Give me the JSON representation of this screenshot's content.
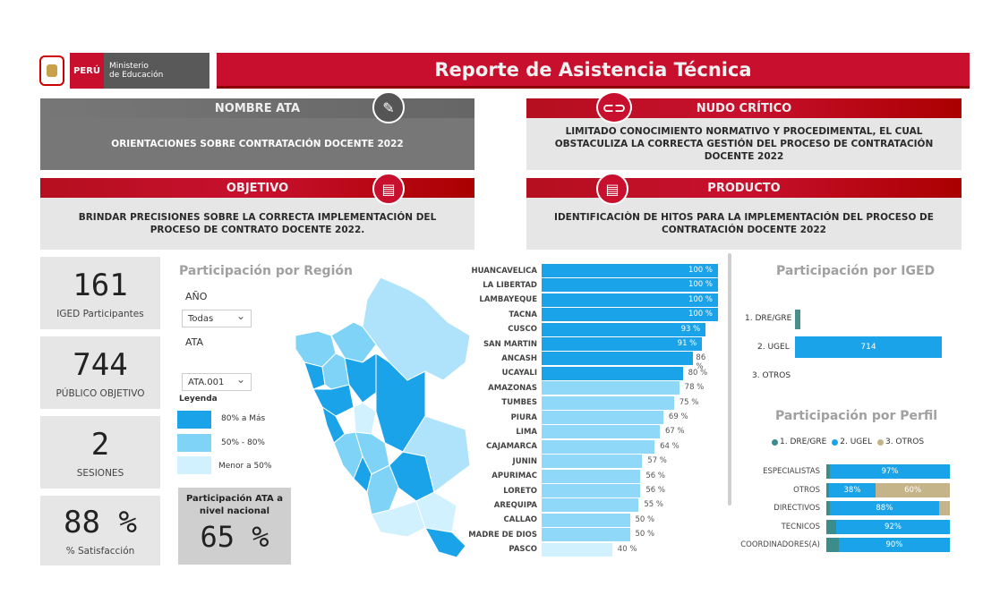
{
  "header": {
    "peru": "PERÚ",
    "ministry_line1": "Ministerio",
    "ministry_line2": "de Educación",
    "title": "Reporte de Asistencia Técnica"
  },
  "cards": {
    "nombre_ata": {
      "title": "NOMBRE ATA",
      "text": "ORIENTACIONES SOBRE CONTRATACIÓN DOCENTE 2022"
    },
    "nudo_critico": {
      "title": "NUDO CRÍTICO",
      "text": "LIMITADO CONOCIMIENTO NORMATIVO Y PROCEDIMENTAL,  EL CUAL OBSTACULIZA LA CORRECTA GESTIÓN DEL PROCESO DE CONTRATACIÓN DOCENTE 2022"
    },
    "objetivo": {
      "title": "OBJETIVO",
      "text": "BRINDAR PRECISIONES SOBRE LA CORRECTA IMPLEMENTACIÓN DEL PROCESO DE CONTRATO DOCENTE 2022."
    },
    "producto": {
      "title": "PRODUCTO",
      "text": "IDENTIFICACIÒN DE HITOS PARA LA IMPLEMENTACIÓN DEL PROCESO DE CONTRATACIÓN DOCENTE 2022"
    }
  },
  "kpis": [
    {
      "value": "161",
      "label": "IGED Participantes"
    },
    {
      "value": "744",
      "label": "PÚBLICO OBJETIVO"
    },
    {
      "value": "2",
      "label": "SESIONES"
    },
    {
      "value": "88 %",
      "label": "% Satisfacción"
    }
  ],
  "region_panel": {
    "title": "Participación por Región",
    "filter_year_label": "AÑO",
    "filter_year_value": "Todas",
    "filter_ata_label": "ATA",
    "filter_ata_value": "ATA.001",
    "legend_title": "Leyenda",
    "legend": [
      {
        "label": "80% a Más",
        "color": "#1aa3e8"
      },
      {
        "label": "50% - 80%",
        "color": "#7fd3f7"
      },
      {
        "label": "Menor a 50%",
        "color": "#d0f1fd"
      }
    ],
    "national_label": "Participación ATA a nivel nacional",
    "national_value": "65 %"
  },
  "region_bars": {
    "type": "bar",
    "categories": [
      "HUANCAVELICA",
      "LA LIBERTAD",
      "LAMBAYEQUE",
      "TACNA",
      "CUSCO",
      "SAN MARTIN",
      "ANCASH",
      "UCAYALI",
      "AMAZONAS",
      "TUMBES",
      "PIURA",
      "LIMA",
      "CAJAMARCA",
      "JUNIN",
      "APURIMAC",
      "LORETO",
      "AREQUIPA",
      "CALLAO",
      "MADRE DE DIOS",
      "PASCO"
    ],
    "values": [
      100,
      100,
      100,
      100,
      93,
      91,
      86,
      80,
      78,
      75,
      69,
      67,
      64,
      57,
      56,
      56,
      55,
      50,
      50,
      40
    ],
    "labels": [
      "100 %",
      "100 %",
      "100 %",
      "100 %",
      "93 %",
      "91 %",
      "86 %",
      "80 %",
      "78 %",
      "75 %",
      "69 %",
      "67 %",
      "64 %",
      "57 %",
      "56 %",
      "56 %",
      "55 %",
      "50 %",
      "50 %",
      "40 %"
    ]
  },
  "iged_panel": {
    "title": "Participación por IGED",
    "categories": [
      "1. DRE/GRE",
      "2. UGEL",
      "3. OTROS"
    ],
    "values": [
      null,
      714,
      null
    ],
    "value_labels": [
      "",
      "714",
      ""
    ],
    "colors": [
      "#4a8f8f",
      "#1aa3e8",
      "#c9b88f"
    ]
  },
  "perfil_panel": {
    "title": "Participación por Perfil",
    "legend": [
      {
        "label": "1. DRE/GRE",
        "color": "#3d8c8c"
      },
      {
        "label": "2. UGEL",
        "color": "#1aa3e8"
      },
      {
        "label": "3. OTROS",
        "color": "#c5b48a"
      }
    ],
    "rows": [
      {
        "label": "ESPECIALISTAS",
        "dre": 3,
        "ugel": 97,
        "otros": 0,
        "ugel_label": "97%",
        "otros_label": ""
      },
      {
        "label": "OTROS",
        "dre": 2,
        "ugel": 38,
        "otros": 60,
        "ugel_label": "38%",
        "otros_label": "60%"
      },
      {
        "label": "DIRECTIVOS",
        "dre": 3,
        "ugel": 88,
        "otros": 9,
        "ugel_label": "88%",
        "otros_label": ""
      },
      {
        "label": "TECNICOS",
        "dre": 8,
        "ugel": 92,
        "otros": 0,
        "ugel_label": "92%",
        "otros_label": ""
      },
      {
        "label": "COORDINADORES(A)",
        "dre": 10,
        "ugel": 90,
        "otros": 0,
        "ugel_label": "90%",
        "otros_label": ""
      }
    ]
  }
}
